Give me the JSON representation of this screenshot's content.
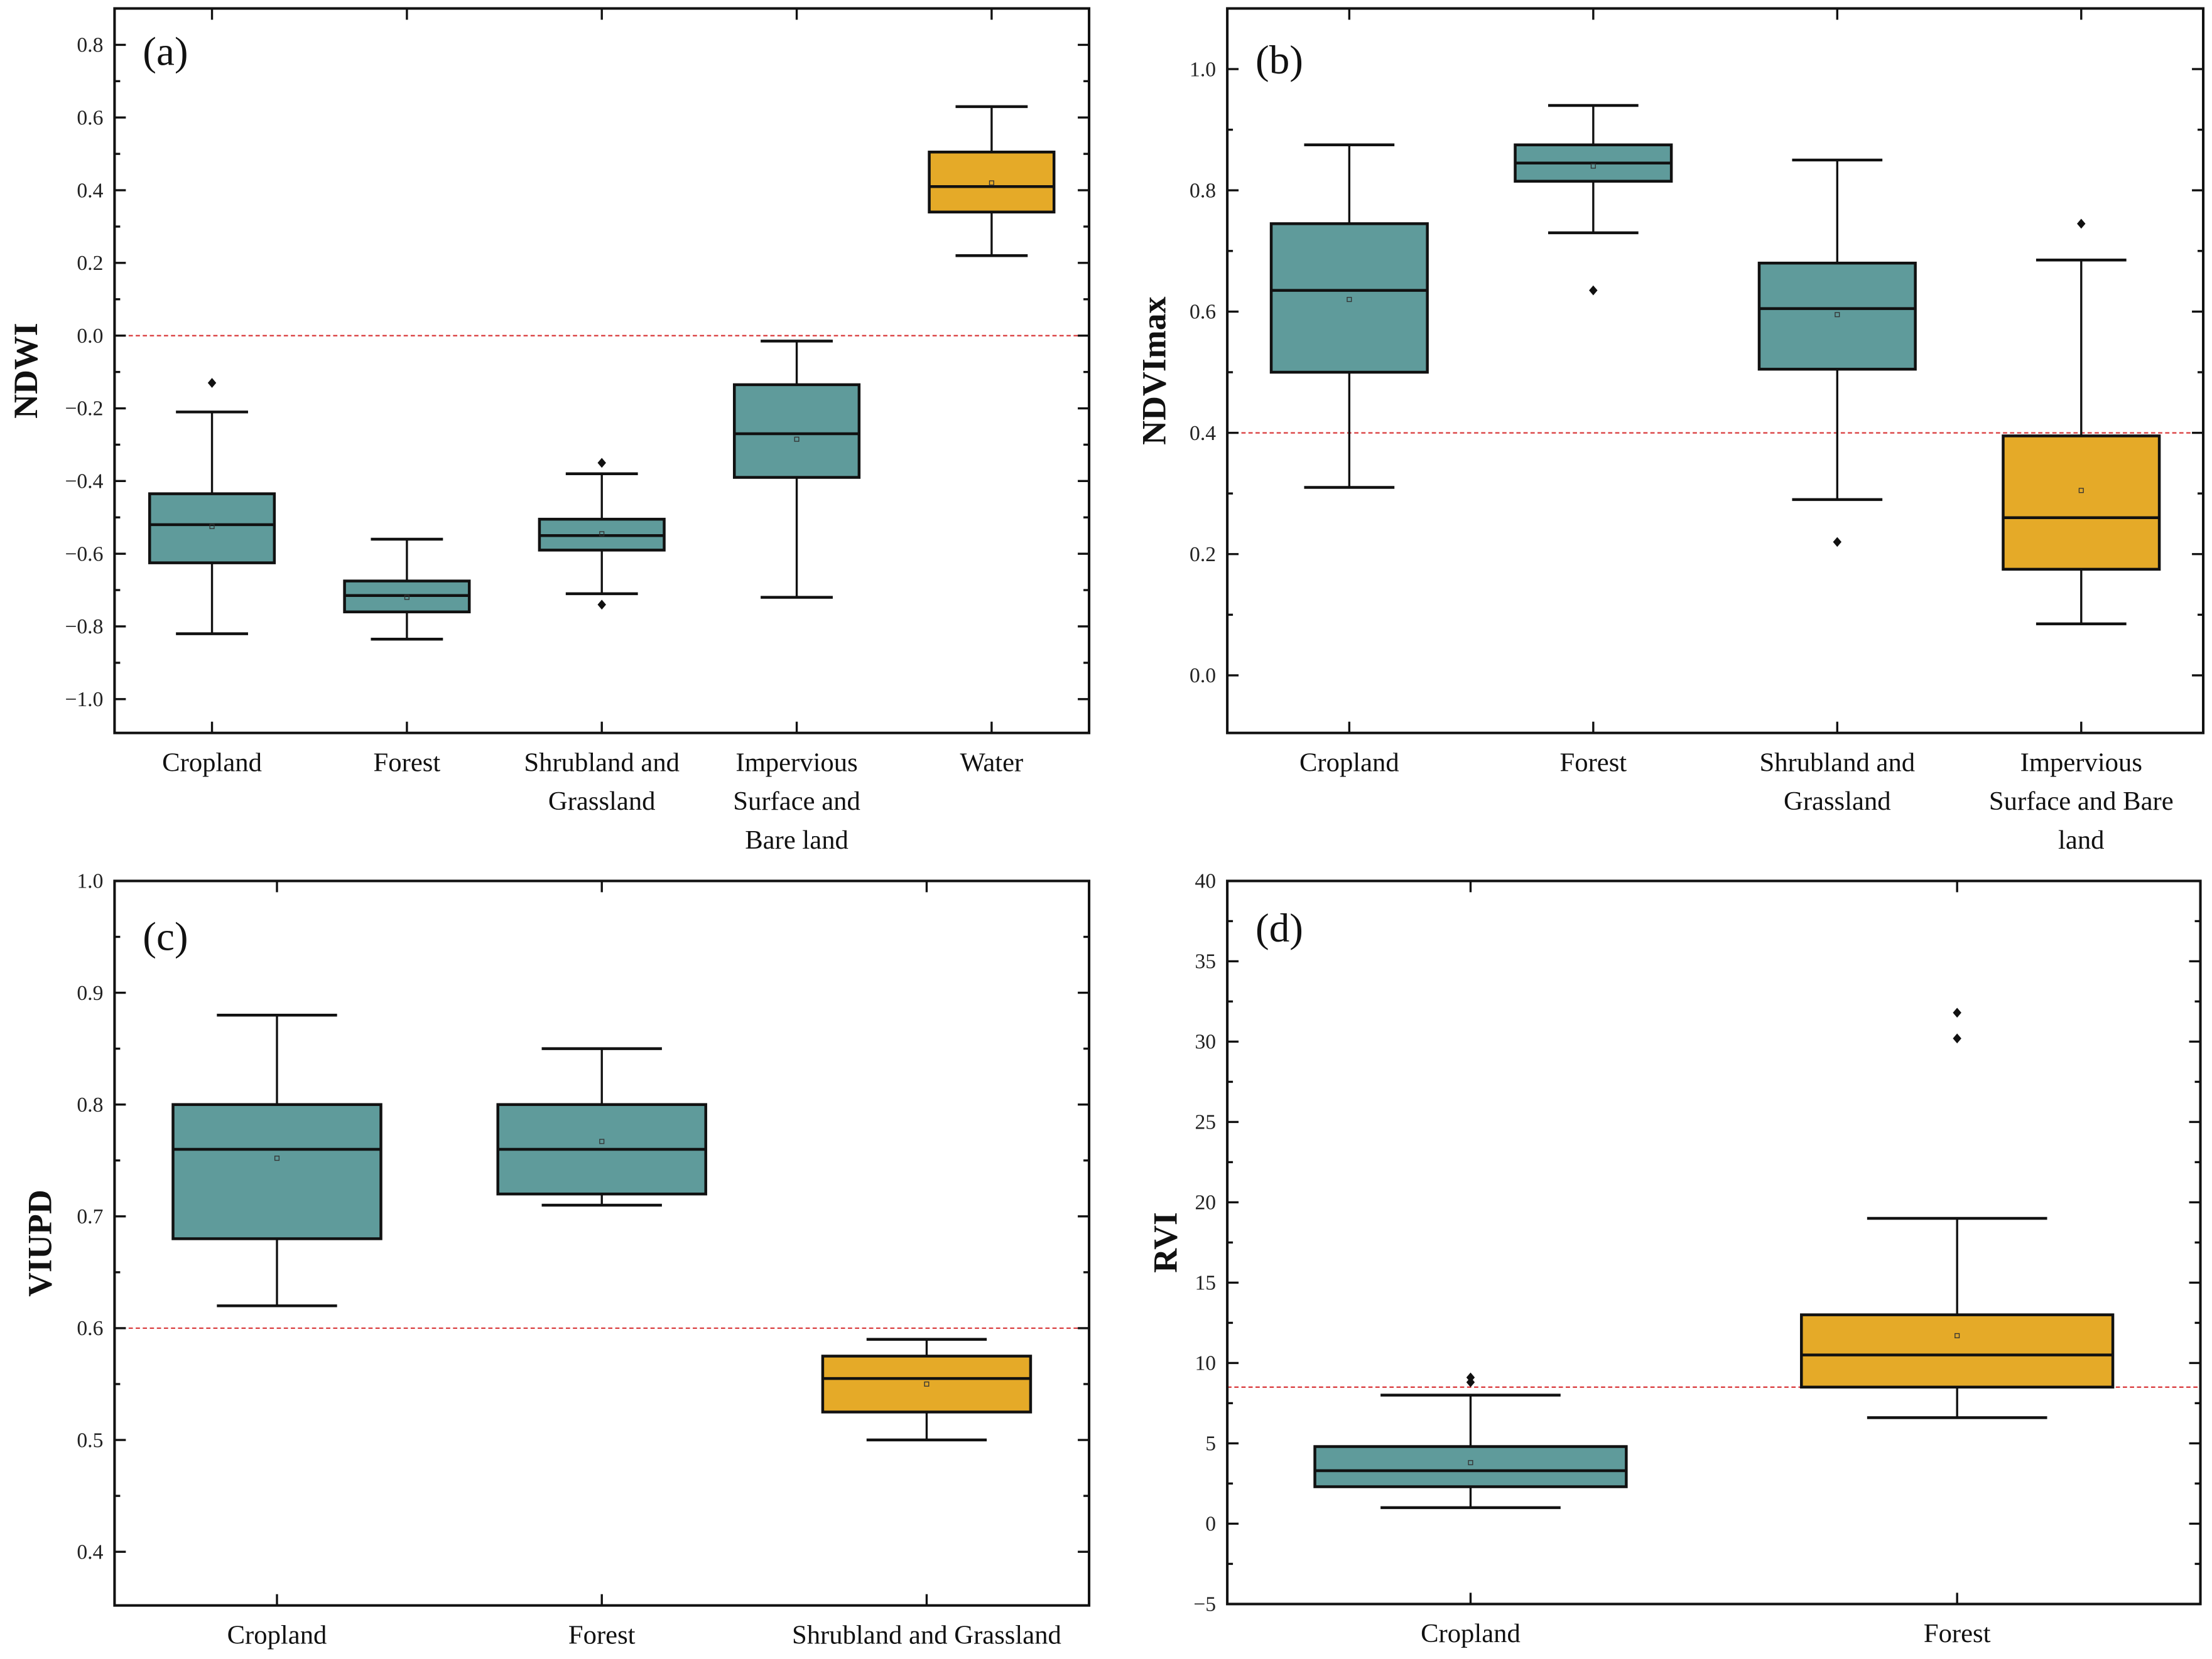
{
  "colors": {
    "teal": "#5f9b9b",
    "orange": "#e5aa28",
    "ref_line": "#d9383a",
    "frame": "#111111"
  },
  "chart_data": [
    {
      "type": "box",
      "panel_label": "(a)",
      "ylabel": "NDWI",
      "ylim": [
        -1.093,
        0.9
      ],
      "yticks": [
        -1.0,
        -0.8,
        -0.6,
        -0.4,
        -0.2,
        0.0,
        0.2,
        0.4,
        0.6,
        0.8
      ],
      "yticklabels": [
        "−1.0",
        "−0.8",
        "−0.6",
        "−0.4",
        "−0.2",
        "0.0",
        "0.2",
        "0.4",
        "0.6",
        "0.8"
      ],
      "minor_step": 0.1,
      "reference_line": 0.0,
      "categories": [
        [
          "Cropland"
        ],
        [
          "Forest"
        ],
        [
          "Shrubland and",
          "Grassland"
        ],
        [
          "Impervious",
          "Surface and",
          "Bare land"
        ],
        [
          "Water"
        ]
      ],
      "boxes": [
        {
          "whisker_low": -0.82,
          "q1": -0.625,
          "median": -0.52,
          "q3": -0.435,
          "whisker_high": -0.21,
          "mean": -0.525,
          "outliers": [
            -0.13
          ],
          "color": "teal"
        },
        {
          "whisker_low": -0.835,
          "q1": -0.76,
          "median": -0.715,
          "q3": -0.675,
          "whisker_high": -0.56,
          "mean": -0.72,
          "outliers": [],
          "color": "teal"
        },
        {
          "whisker_low": -0.71,
          "q1": -0.59,
          "median": -0.55,
          "q3": -0.505,
          "whisker_high": -0.38,
          "mean": -0.545,
          "outliers": [
            -0.35,
            -0.74
          ],
          "color": "teal"
        },
        {
          "whisker_low": -0.72,
          "q1": -0.39,
          "median": -0.27,
          "q3": -0.135,
          "whisker_high": -0.015,
          "mean": -0.285,
          "outliers": [],
          "color": "teal"
        },
        {
          "whisker_low": 0.22,
          "q1": 0.34,
          "median": 0.41,
          "q3": 0.505,
          "whisker_high": 0.63,
          "mean": 0.42,
          "outliers": [],
          "color": "orange"
        }
      ]
    },
    {
      "type": "box",
      "panel_label": "(b)",
      "ylabel": "NDVImax",
      "ylim": [
        -0.095,
        1.1
      ],
      "yticks": [
        0.0,
        0.2,
        0.4,
        0.6,
        0.8,
        1.0
      ],
      "yticklabels": [
        "0.0",
        "0.2",
        "0.4",
        "0.6",
        "0.8",
        "1.0"
      ],
      "minor_step": 0.1,
      "reference_line": 0.4,
      "categories": [
        [
          "Cropland"
        ],
        [
          "Forest"
        ],
        [
          "Shrubland and",
          "Grassland"
        ],
        [
          "Impervious",
          "Surface and Bare",
          "land"
        ]
      ],
      "boxes": [
        {
          "whisker_low": 0.31,
          "q1": 0.5,
          "median": 0.635,
          "q3": 0.745,
          "whisker_high": 0.875,
          "mean": 0.62,
          "outliers": [],
          "color": "teal"
        },
        {
          "whisker_low": 0.73,
          "q1": 0.815,
          "median": 0.845,
          "q3": 0.875,
          "whisker_high": 0.94,
          "mean": 0.84,
          "outliers": [
            0.635
          ],
          "color": "teal"
        },
        {
          "whisker_low": 0.29,
          "q1": 0.505,
          "median": 0.605,
          "q3": 0.68,
          "whisker_high": 0.85,
          "mean": 0.595,
          "outliers": [
            0.22
          ],
          "color": "teal"
        },
        {
          "whisker_low": 0.085,
          "q1": 0.175,
          "median": 0.26,
          "q3": 0.395,
          "whisker_high": 0.685,
          "mean": 0.305,
          "outliers": [
            0.745
          ],
          "color": "orange"
        }
      ]
    },
    {
      "type": "box",
      "panel_label": "(c)",
      "ylabel": "VIUPD",
      "ylim": [
        0.352,
        1.0
      ],
      "yticks": [
        0.4,
        0.5,
        0.6,
        0.7,
        0.8,
        0.9,
        1.0
      ],
      "yticklabels": [
        "0.4",
        "0.5",
        "0.6",
        "0.7",
        "0.8",
        "0.9",
        "1.0"
      ],
      "minor_step": 0.05,
      "reference_line": 0.6,
      "categories": [
        [
          "Cropland"
        ],
        [
          "Forest"
        ],
        [
          "Shrubland and Grassland"
        ]
      ],
      "boxes": [
        {
          "whisker_low": 0.62,
          "q1": 0.68,
          "median": 0.76,
          "q3": 0.8,
          "whisker_high": 0.88,
          "mean": 0.752,
          "outliers": [],
          "color": "teal"
        },
        {
          "whisker_low": 0.71,
          "q1": 0.72,
          "median": 0.76,
          "q3": 0.8,
          "whisker_high": 0.85,
          "mean": 0.767,
          "outliers": [],
          "color": "teal"
        },
        {
          "whisker_low": 0.5,
          "q1": 0.525,
          "median": 0.555,
          "q3": 0.575,
          "whisker_high": 0.59,
          "mean": 0.55,
          "outliers": [],
          "color": "orange"
        }
      ]
    },
    {
      "type": "box",
      "panel_label": "(d)",
      "ylabel": "RVI",
      "ylim": [
        -5,
        40
      ],
      "yticks": [
        -5,
        0,
        5,
        10,
        15,
        20,
        25,
        30,
        35,
        40
      ],
      "yticklabels": [
        "−5",
        "0",
        "5",
        "10",
        "15",
        "20",
        "25",
        "30",
        "35",
        "40"
      ],
      "minor_step": 2.5,
      "reference_line": 8.5,
      "categories": [
        [
          "Cropland"
        ],
        [
          "Forest"
        ]
      ],
      "boxes": [
        {
          "whisker_low": 1.0,
          "q1": 2.3,
          "median": 3.3,
          "q3": 4.8,
          "whisker_high": 8.0,
          "mean": 3.8,
          "outliers": [
            8.8,
            9.1
          ],
          "color": "teal"
        },
        {
          "whisker_low": 6.6,
          "q1": 8.5,
          "median": 10.5,
          "q3": 13.0,
          "whisker_high": 19.0,
          "mean": 11.7,
          "outliers": [
            30.2,
            31.8
          ],
          "color": "orange"
        }
      ]
    }
  ]
}
